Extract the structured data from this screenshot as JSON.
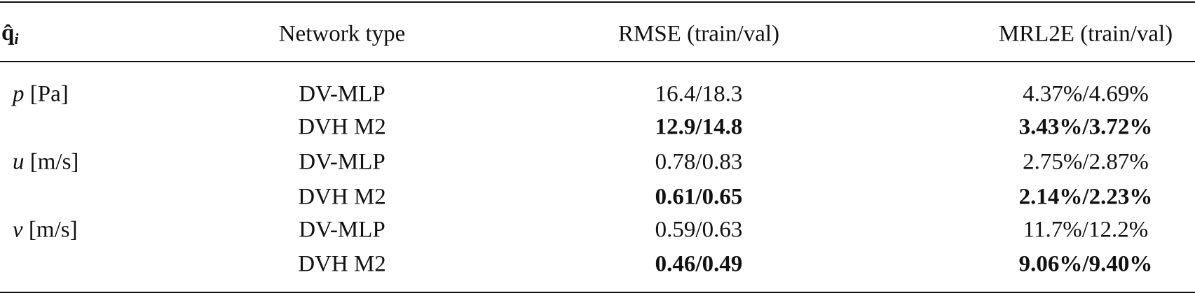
{
  "table": {
    "header": {
      "quantity": {
        "symbol": "q̂",
        "subscript": "i"
      },
      "network": "Network type",
      "rmse": "RMSE (train/val)",
      "mrl2e": "MRL2E (train/val)"
    },
    "groups": [
      {
        "quantity": {
          "symbol": "p",
          "unit": "[Pa]"
        },
        "rows": [
          {
            "network": "DV-MLP",
            "rmse": "16.4/18.3",
            "mrl2e": "4.37%/4.69%",
            "bold": false
          },
          {
            "network": "DVH M2",
            "rmse": "12.9/14.8",
            "mrl2e": "3.43%/3.72%",
            "bold": true
          }
        ]
      },
      {
        "quantity": {
          "symbol": "u",
          "unit": "[m/s]"
        },
        "rows": [
          {
            "network": "DV-MLP",
            "rmse": "0.78/0.83",
            "mrl2e": "2.75%/2.87%",
            "bold": false
          },
          {
            "network": "DVH M2",
            "rmse": "0.61/0.65",
            "mrl2e": "2.14%/2.23%",
            "bold": true
          }
        ]
      },
      {
        "quantity": {
          "symbol": "v",
          "unit": "[m/s]"
        },
        "rows": [
          {
            "network": "DV-MLP",
            "rmse": "0.59/0.63",
            "mrl2e": "11.7%/12.2%",
            "bold": false
          },
          {
            "network": "DVH M2",
            "rmse": "0.46/0.49",
            "mrl2e": "9.06%/9.40%",
            "bold": true
          }
        ]
      }
    ]
  }
}
